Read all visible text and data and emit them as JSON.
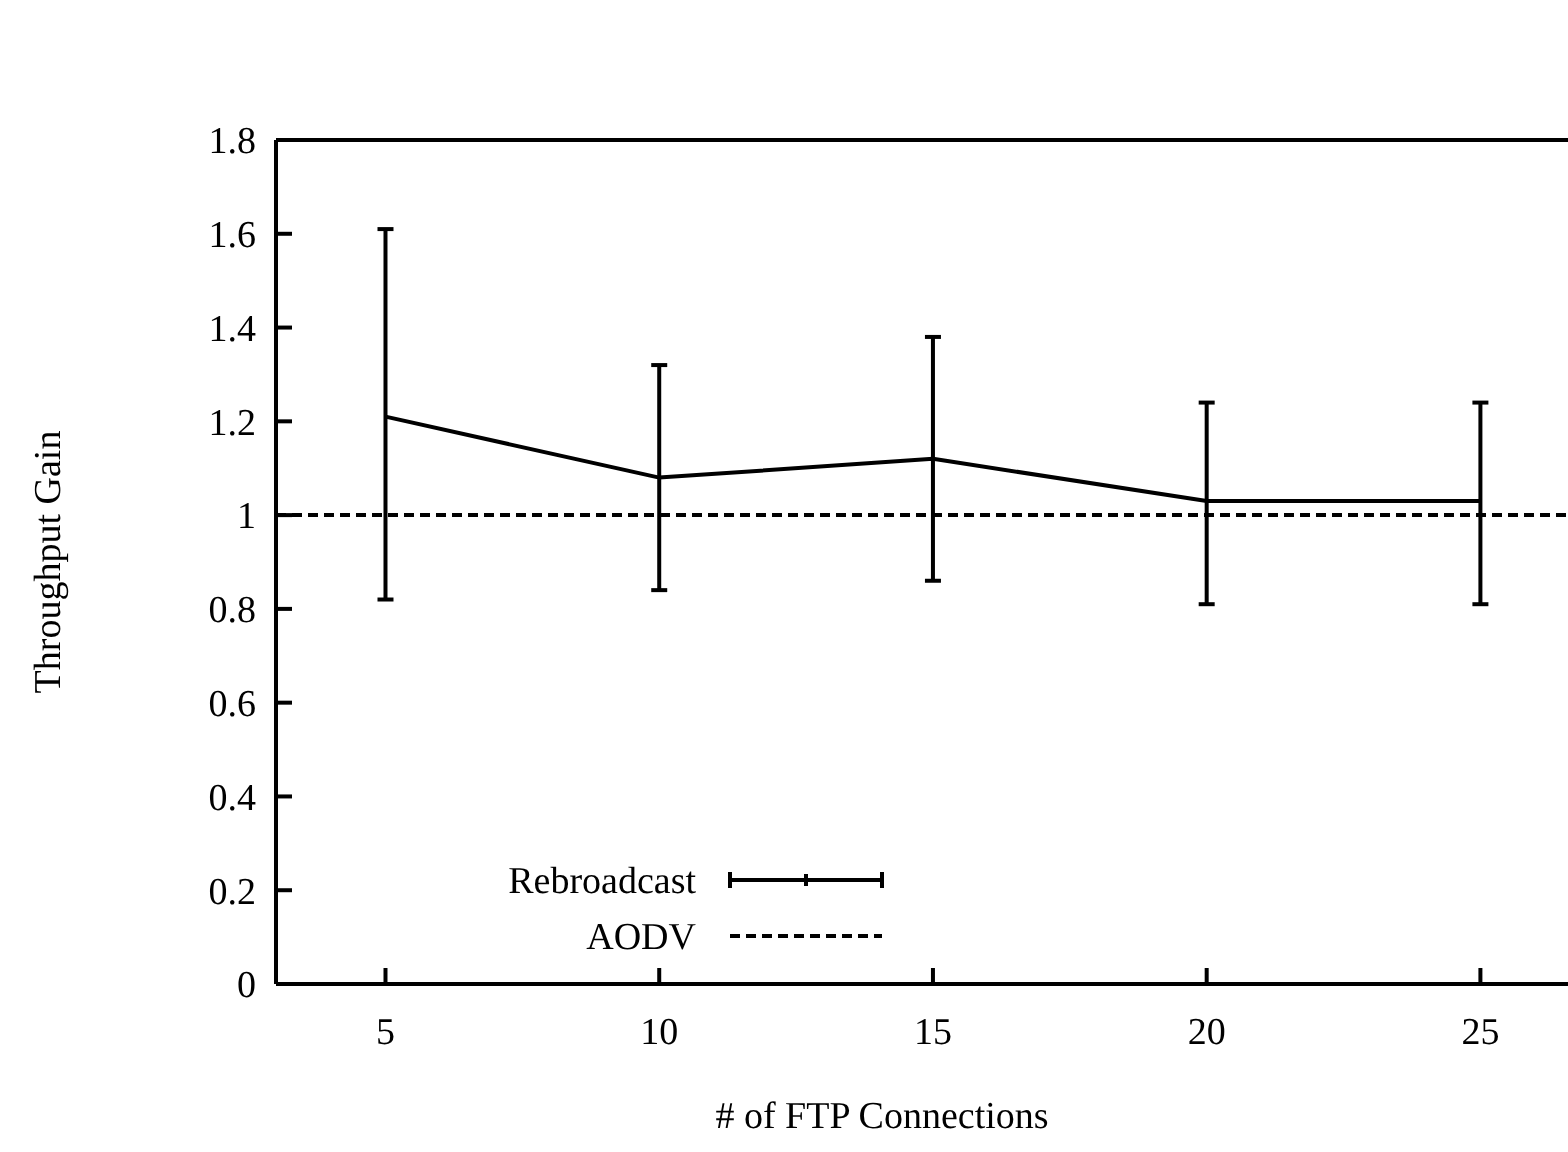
{
  "chart_data": {
    "type": "line",
    "xlabel": "# of FTP Connections",
    "ylabel": "Throughput Gain",
    "x": [
      5,
      10,
      15,
      20,
      25
    ],
    "series": [
      {
        "name": "Rebroadcast",
        "color": "#000000",
        "values": [
          1.21,
          1.08,
          1.12,
          1.03,
          1.03
        ],
        "errors": [
          [
            0.82,
            1.61
          ],
          [
            0.84,
            1.32
          ],
          [
            0.86,
            1.38
          ],
          [
            0.81,
            1.24
          ],
          [
            0.81,
            1.24
          ]
        ]
      }
    ],
    "ref_lines": [
      {
        "axis": "y",
        "value": 1,
        "label": "AODV",
        "color": "#000000",
        "line_style": "dashed"
      }
    ],
    "xlim": [
      3,
      26.6
    ],
    "xticks": [
      5,
      10,
      15,
      20,
      25
    ],
    "ylim": [
      0,
      1.8
    ],
    "yticks": [
      0,
      0.2,
      0.4,
      0.6,
      0.8,
      1,
      1.2,
      1.4,
      1.6,
      1.8
    ],
    "grid": false,
    "legend": "bottom left",
    "marker": "none",
    "line_style": "solid"
  }
}
